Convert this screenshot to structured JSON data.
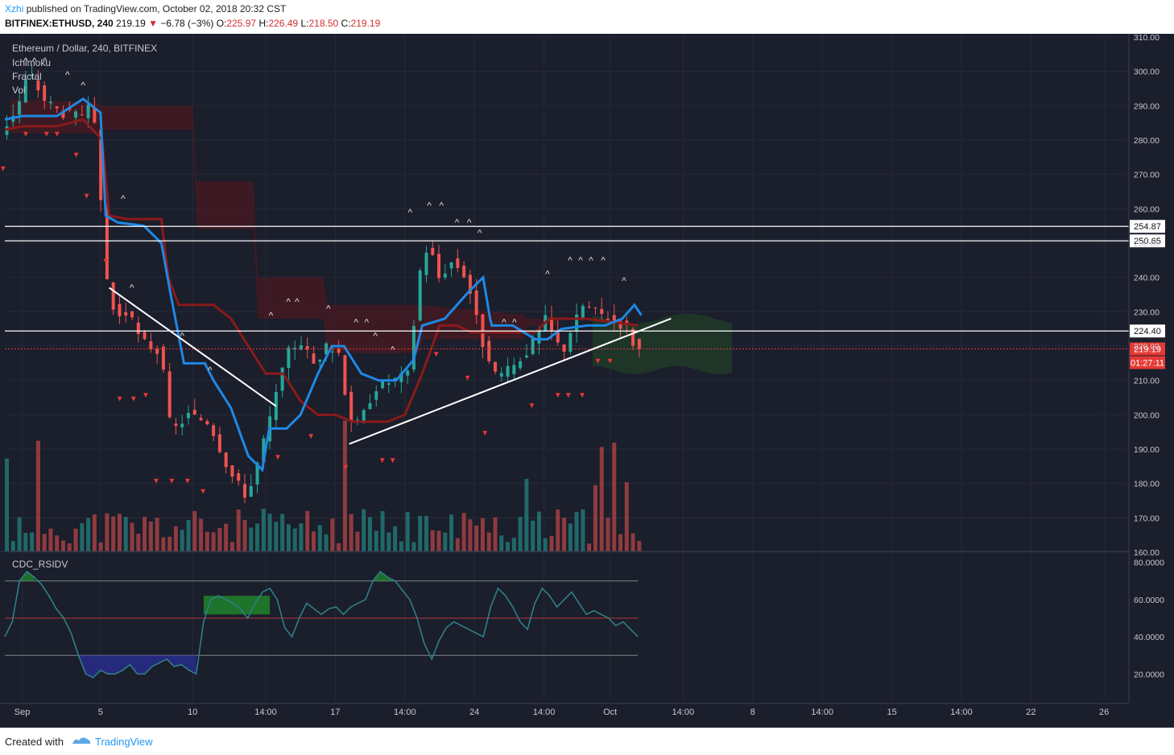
{
  "header": {
    "author": "Xzhi",
    "published_text": "published on TradingView.com, October 02, 2018 20:32 CST",
    "symbol": "BITFINEX:ETHUSD, 240",
    "last": "219.19",
    "change": "−6.78 (−3%)",
    "o_label": "O:",
    "o_value": "225.97",
    "h_label": "H:",
    "h_value": "226.49",
    "l_label": "L:",
    "l_value": "218.50",
    "c_label": "C:",
    "c_value": "219.19"
  },
  "legend": {
    "title": "Ethereum / Dollar, 240, BITFINEX",
    "items": [
      "Ichimoku",
      "Fractal",
      "Vol"
    ]
  },
  "indicator": {
    "name": "CDC_RSIDV"
  },
  "footer": {
    "created_with": "Created with",
    "brand": "TradingView"
  },
  "colors": {
    "background": "#1b1e2b",
    "up": "#26a69a",
    "down": "#ef5350",
    "kijun": "#1e88e5",
    "tenkan": "#8b1a1a",
    "cloud_bear": "#4a1a22",
    "cloud_bull": "#1f3a28",
    "rsi_line": "#2f7f88",
    "overbought_fill": "#1f8a2c",
    "oversold_fill": "#2a2f9a"
  },
  "chart_data": [
    {
      "type": "candlestick",
      "title": "Ethereum / Dollar, 240, BITFINEX",
      "ylim": [
        160,
        310
      ],
      "y_ticks": [
        "310.00",
        "300.00",
        "290.00",
        "280.00",
        "270.00",
        "260.00",
        "250.00",
        "240.00",
        "230.00",
        "220.00",
        "210.00",
        "200.00",
        "190.00",
        "180.00",
        "170.00",
        "160.00"
      ],
      "x_ticks": [
        "Sep",
        "5",
        "10",
        "14:00",
        "17",
        "14:00",
        "24",
        "14:00",
        "Oct",
        "14:00",
        "8",
        "14:00",
        "15",
        "14:00",
        "22",
        "26"
      ],
      "last_price_label": "219.19",
      "countdown_label": "01:27:11",
      "horizontal_levels": [
        {
          "value": 254.87,
          "label": "254.87"
        },
        {
          "value": 250.65,
          "label": "250.65"
        },
        {
          "value": 224.4,
          "label": "224.40"
        }
      ],
      "trendlines": [
        {
          "from": [
            6,
            237
          ],
          "to": [
            15.6,
            202.5
          ]
        },
        {
          "from": [
            19.8,
            191.5
          ],
          "to": [
            38.3,
            228
          ]
        }
      ],
      "price_path": [
        [
          0,
          282
        ],
        [
          1,
          290
        ],
        [
          1.6,
          300
        ],
        [
          2.5,
          292
        ],
        [
          3.5,
          288
        ],
        [
          4.5,
          287
        ],
        [
          5.3,
          290
        ],
        [
          5.7,
          265
        ],
        [
          6.1,
          240
        ],
        [
          6.6,
          228
        ],
        [
          7.3,
          230
        ],
        [
          8,
          222
        ],
        [
          9.2,
          218
        ],
        [
          9.8,
          195
        ],
        [
          10.8,
          200
        ],
        [
          12,
          198
        ],
        [
          13.2,
          183
        ],
        [
          14.2,
          176
        ],
        [
          15,
          190
        ],
        [
          15.8,
          205
        ],
        [
          16.5,
          218
        ],
        [
          17.2,
          222
        ],
        [
          18,
          215
        ],
        [
          18.8,
          220
        ],
        [
          19.5,
          218
        ],
        [
          20,
          200
        ],
        [
          20.6,
          197
        ],
        [
          21.5,
          208
        ],
        [
          22.5,
          210
        ],
        [
          23.5,
          212
        ],
        [
          24,
          240
        ],
        [
          24.6,
          250
        ],
        [
          25.2,
          240
        ],
        [
          26,
          245
        ],
        [
          26.8,
          240
        ],
        [
          27.5,
          225
        ],
        [
          28.2,
          212
        ],
        [
          29,
          212
        ],
        [
          29.6,
          215
        ],
        [
          30.5,
          220
        ],
        [
          31.3,
          228
        ],
        [
          32.3,
          218
        ],
        [
          32.8,
          225
        ],
        [
          33.5,
          232
        ],
        [
          34.2,
          230
        ],
        [
          35.2,
          228
        ],
        [
          36.1,
          225
        ],
        [
          36.5,
          219
        ]
      ]
    },
    {
      "type": "line",
      "title": "CDC_RSIDV",
      "ylim": [
        5,
        85
      ],
      "y_ticks": [
        "80.0000",
        "60.0000",
        "40.0000",
        "20.0000"
      ],
      "levels": [
        70,
        50,
        30
      ],
      "values": [
        40,
        48,
        70,
        75,
        72,
        68,
        62,
        55,
        50,
        42,
        30,
        20,
        18,
        22,
        20,
        20,
        22,
        25,
        20,
        20,
        24,
        26,
        28,
        24,
        25,
        22,
        20,
        48,
        60,
        62,
        60,
        58,
        55,
        50,
        58,
        64,
        66,
        60,
        45,
        40,
        50,
        58,
        55,
        52,
        55,
        56,
        52,
        56,
        58,
        60,
        70,
        75,
        72,
        70,
        65,
        60,
        50,
        36,
        28,
        38,
        45,
        48,
        46,
        44,
        42,
        40,
        56,
        66,
        62,
        56,
        48,
        44,
        58,
        66,
        62,
        56,
        60,
        64,
        58,
        52,
        54,
        52,
        50,
        46,
        48,
        44,
        40
      ]
    }
  ]
}
